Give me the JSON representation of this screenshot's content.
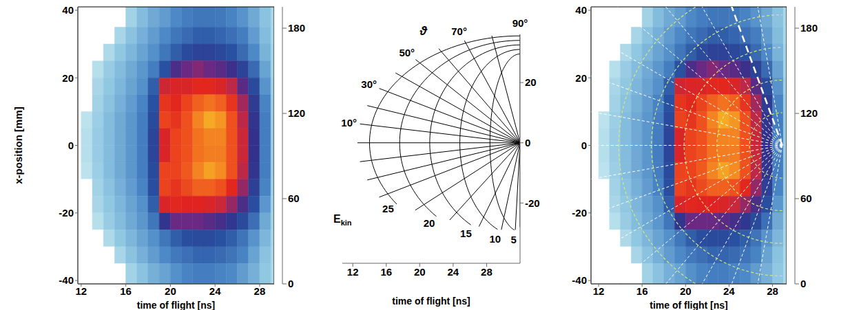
{
  "chart_data": [
    {
      "type": "heatmap",
      "xlabel": "time of flight [ns]",
      "ylabel": "x-position [mm]",
      "xlim": [
        11.7,
        29.3
      ],
      "xticks": [
        12,
        16,
        20,
        24,
        28
      ],
      "ylim": [
        -41,
        41
      ],
      "yticks": [
        -40,
        -20,
        0,
        20,
        40
      ],
      "cells": {
        "x_bins": [
          12,
          13,
          14,
          15,
          16,
          17,
          18,
          19,
          20,
          21,
          22,
          23,
          24,
          25,
          26,
          27,
          28,
          29,
          30
        ],
        "y_bins": [
          41,
          35,
          30,
          25,
          20,
          15,
          10,
          5,
          0,
          -5,
          -10,
          -15,
          -20,
          -25,
          -30,
          -35,
          -41
        ],
        "values": [
          [
            0,
            0,
            0,
            0,
            12,
            22,
            28,
            32,
            38,
            42,
            45,
            45,
            44,
            40,
            35,
            28,
            20,
            10
          ],
          [
            0,
            0,
            0,
            10,
            20,
            26,
            32,
            38,
            45,
            50,
            55,
            55,
            52,
            48,
            42,
            32,
            22,
            10
          ],
          [
            0,
            0,
            8,
            18,
            24,
            30,
            36,
            45,
            55,
            65,
            70,
            70,
            66,
            60,
            50,
            38,
            25,
            12
          ],
          [
            0,
            5,
            15,
            22,
            28,
            34,
            42,
            60,
            90,
            100,
            105,
            100,
            95,
            85,
            70,
            50,
            30,
            12
          ],
          [
            0,
            10,
            18,
            24,
            30,
            36,
            55,
            120,
            125,
            125,
            130,
            130,
            125,
            115,
            95,
            65,
            35,
            14
          ],
          [
            0,
            12,
            20,
            26,
            32,
            40,
            60,
            135,
            130,
            140,
            150,
            155,
            150,
            135,
            110,
            75,
            40,
            15
          ],
          [
            3,
            14,
            22,
            28,
            34,
            42,
            65,
            140,
            135,
            145,
            160,
            170,
            165,
            145,
            115,
            80,
            42,
            15
          ],
          [
            5,
            15,
            22,
            28,
            34,
            42,
            68,
            125,
            140,
            145,
            155,
            160,
            160,
            145,
            118,
            82,
            42,
            15
          ],
          [
            5,
            15,
            22,
            28,
            34,
            42,
            68,
            125,
            140,
            145,
            155,
            158,
            158,
            145,
            118,
            82,
            42,
            15
          ],
          [
            3,
            14,
            22,
            28,
            34,
            42,
            65,
            140,
            140,
            148,
            160,
            168,
            162,
            145,
            115,
            80,
            42,
            15
          ],
          [
            0,
            12,
            20,
            26,
            32,
            40,
            62,
            140,
            135,
            142,
            150,
            150,
            145,
            130,
            108,
            72,
            40,
            14
          ],
          [
            0,
            10,
            18,
            24,
            30,
            36,
            55,
            125,
            130,
            128,
            128,
            125,
            118,
            108,
            90,
            62,
            34,
            13
          ],
          [
            0,
            5,
            15,
            22,
            28,
            34,
            45,
            80,
            100,
            100,
            100,
            95,
            88,
            78,
            65,
            48,
            28,
            12
          ],
          [
            0,
            0,
            8,
            18,
            24,
            30,
            36,
            45,
            55,
            62,
            65,
            65,
            60,
            55,
            46,
            35,
            24,
            11
          ],
          [
            0,
            0,
            0,
            10,
            20,
            26,
            32,
            38,
            44,
            48,
            52,
            52,
            50,
            46,
            40,
            30,
            20,
            10
          ],
          [
            0,
            0,
            0,
            0,
            12,
            20,
            26,
            30,
            36,
            40,
            42,
            42,
            40,
            38,
            32,
            26,
            18,
            9
          ]
        ]
      },
      "colorbar": {
        "range": [
          0,
          195
        ],
        "ticks": [
          0,
          60,
          120,
          180
        ]
      }
    },
    {
      "type": "diagram",
      "xlabel": "time of flight [ns]",
      "xlim": [
        10.75,
        32
      ],
      "xticks": [
        12,
        16,
        20,
        24,
        28
      ],
      "ylim": [
        -40,
        36
      ],
      "yticks": [
        -20,
        0,
        20
      ],
      "pole": {
        "x": 32,
        "y": 0
      },
      "angle_symbol": "ϑ",
      "angle_lines": [
        -90,
        -80,
        -70,
        -60,
        -50,
        -40,
        -30,
        -20,
        -10,
        0,
        10,
        20,
        30,
        40,
        50,
        60,
        70,
        80,
        90
      ],
      "angle_labels": [
        {
          "value": 10,
          "label": "10°"
        },
        {
          "value": 30,
          "label": "30°"
        },
        {
          "value": 50,
          "label": "50°"
        },
        {
          "value": 70,
          "label": "70°"
        },
        {
          "value": 90,
          "label": "90°"
        }
      ],
      "energy_title": {
        "text": "E",
        "subscript": "kin"
      },
      "energy_lines": [
        5,
        10,
        15,
        20,
        25
      ]
    },
    {
      "type": "heatmap",
      "xlabel": "time of flight [ns]",
      "xlim": [
        11.3,
        29.3
      ],
      "xticks": [
        12,
        16,
        20,
        24,
        28
      ],
      "ylim": [
        -41,
        41
      ],
      "yticks": [
        -40,
        -20,
        0,
        20,
        40
      ],
      "cells": {
        "x_bins": [
          12,
          13,
          14,
          15,
          16,
          17,
          18,
          19,
          20,
          21,
          22,
          23,
          24,
          25,
          26,
          27,
          28,
          29,
          30
        ],
        "y_bins": [
          41,
          35,
          30,
          25,
          20,
          15,
          10,
          5,
          0,
          -5,
          -10,
          -15,
          -20,
          -25,
          -30,
          -35,
          -41
        ],
        "values": [
          [
            0,
            0,
            0,
            0,
            12,
            22,
            28,
            32,
            38,
            42,
            45,
            45,
            44,
            40,
            35,
            28,
            20,
            10
          ],
          [
            0,
            0,
            0,
            10,
            20,
            26,
            32,
            38,
            45,
            50,
            55,
            55,
            52,
            48,
            42,
            32,
            22,
            10
          ],
          [
            0,
            0,
            8,
            18,
            24,
            30,
            36,
            45,
            55,
            65,
            70,
            70,
            66,
            60,
            50,
            38,
            25,
            12
          ],
          [
            0,
            5,
            15,
            22,
            28,
            34,
            42,
            60,
            90,
            100,
            105,
            100,
            95,
            85,
            70,
            50,
            30,
            12
          ],
          [
            0,
            10,
            18,
            24,
            30,
            36,
            55,
            120,
            125,
            125,
            130,
            130,
            125,
            115,
            95,
            65,
            35,
            14
          ],
          [
            0,
            12,
            20,
            26,
            32,
            40,
            60,
            135,
            130,
            140,
            150,
            155,
            150,
            135,
            110,
            75,
            40,
            15
          ],
          [
            3,
            14,
            22,
            28,
            34,
            42,
            65,
            140,
            135,
            145,
            160,
            170,
            165,
            145,
            115,
            80,
            42,
            15
          ],
          [
            5,
            15,
            22,
            28,
            34,
            42,
            68,
            125,
            140,
            145,
            155,
            160,
            160,
            145,
            118,
            82,
            42,
            15
          ],
          [
            5,
            15,
            22,
            28,
            34,
            42,
            68,
            125,
            140,
            145,
            155,
            158,
            158,
            145,
            118,
            82,
            42,
            15
          ],
          [
            3,
            14,
            22,
            28,
            34,
            42,
            65,
            140,
            140,
            148,
            160,
            168,
            162,
            145,
            115,
            80,
            42,
            15
          ],
          [
            0,
            12,
            20,
            26,
            32,
            40,
            62,
            140,
            135,
            142,
            150,
            150,
            145,
            130,
            108,
            72,
            40,
            14
          ],
          [
            0,
            10,
            18,
            24,
            30,
            36,
            55,
            125,
            130,
            128,
            128,
            125,
            118,
            108,
            90,
            62,
            34,
            13
          ],
          [
            0,
            5,
            15,
            22,
            28,
            34,
            45,
            80,
            100,
            100,
            100,
            95,
            88,
            78,
            65,
            48,
            28,
            12
          ],
          [
            0,
            0,
            8,
            18,
            24,
            30,
            36,
            45,
            55,
            62,
            65,
            65,
            60,
            55,
            46,
            35,
            24,
            11
          ],
          [
            0,
            0,
            0,
            10,
            20,
            26,
            32,
            38,
            44,
            48,
            52,
            52,
            50,
            46,
            40,
            30,
            20,
            10
          ],
          [
            0,
            0,
            0,
            0,
            12,
            20,
            26,
            30,
            36,
            40,
            42,
            42,
            40,
            38,
            32,
            26,
            18,
            9
          ]
        ]
      },
      "colorbar": {
        "range": [
          0,
          195
        ],
        "ticks": [
          0,
          60,
          120,
          180
        ]
      },
      "overlay": {
        "pole": {
          "x": 28.9,
          "y": 0
        },
        "angle_lines": [
          -80,
          -70,
          -60,
          -50,
          -40,
          -30,
          -20,
          -10,
          0,
          10,
          20,
          30,
          40,
          50,
          60,
          70,
          80
        ],
        "energy_lines": [
          5,
          10,
          15,
          20,
          25
        ],
        "highlight_angle": 70
      }
    }
  ]
}
